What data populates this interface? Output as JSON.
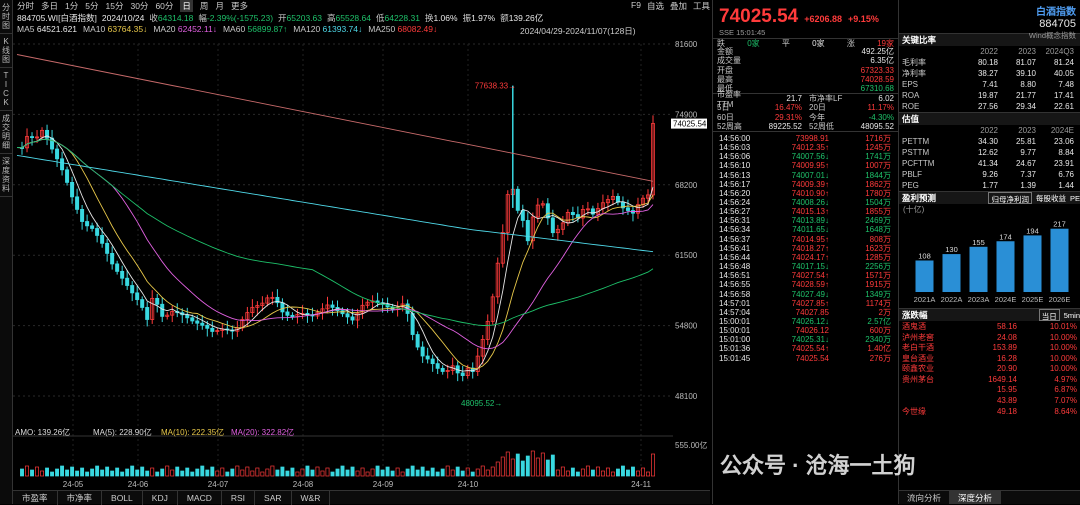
{
  "left_tabs": [
    "分时图",
    "K线图",
    "TICK",
    "成交明细",
    "深度资料"
  ],
  "top_tabs": [
    "分时",
    "多日",
    "1分",
    "5分",
    "15分",
    "30分",
    "60分",
    "日",
    "周",
    "月",
    "更多"
  ],
  "top_right": [
    "F9",
    "自选",
    "叠加",
    "工具"
  ],
  "info": {
    "code": "884705.WI[白酒指数]",
    "date": "2024/10/24",
    "close_l": "收",
    "close": "64314.18",
    "chg_l": "幅",
    "chg": "-2.39%(-1575.23)",
    "open_l": "开",
    "open": "65203.63",
    "high_l": "高",
    "high": "65528.64",
    "low_l": "低",
    "low": "64228.31",
    "turn_l": "换",
    "turn": "1.06%",
    "amp_l": "振",
    "amp": "1.97%",
    "amt_l": "额",
    "amt": "139.26亿"
  },
  "ma": [
    {
      "l": "MA5",
      "v": "64521.621",
      "c": "#e8e8e8"
    },
    {
      "l": "MA10",
      "v": "63764.35↓",
      "c": "#e8c84a"
    },
    {
      "l": "MA20",
      "v": "62452.11↓",
      "c": "#e060e0"
    },
    {
      "l": "MA60",
      "v": "56899.87↑",
      "c": "#1ec16a"
    },
    {
      "l": "MA120",
      "v": "61393.74↓",
      "c": "#4fd8e8"
    },
    {
      "l": "MA250",
      "v": "68082.49↓",
      "c": "#ff3b3b"
    }
  ],
  "range": "2024/04/29-2024/11/07(128日)",
  "yaxis": [
    "81600",
    "74900",
    "68200",
    "61500",
    "54800",
    "48100"
  ],
  "price_tag": "74025.54",
  "hi_label": "77638.33",
  "lo_label": "48095.52",
  "vol_axis": "555.00亿",
  "xaxis": [
    "24-05",
    "24-06",
    "24-07",
    "24-08",
    "24-09",
    "24-10",
    "24-11"
  ],
  "amo": {
    "l": "AMO: 139.26亿",
    "ma5": "MA(5): 228.90亿",
    "ma10": "MA(10): 222.35亿",
    "ma20": "MA(20): 322.82亿"
  },
  "bottom_tabs": [
    "市盈率",
    "市净率",
    "BOLL",
    "KDJ",
    "MACD",
    "RSI",
    "SAR",
    "W&R"
  ],
  "quote": {
    "price": "74025.54",
    "chg": "+6206.88",
    "pct": "+9.15%",
    "sse": "SSE 15:01:45"
  },
  "stats": [
    [
      "跌",
      "0家",
      "平",
      "0家",
      "涨",
      "19家"
    ]
  ],
  "kv": [
    [
      "金额",
      "492.25亿"
    ],
    [
      "成交量",
      "6.35亿"
    ],
    [
      "开盘",
      "67323.33"
    ],
    [
      "最高",
      "74028.59"
    ],
    [
      "最低",
      "67310.68"
    ]
  ],
  "pe": [
    [
      "市盈率TTM",
      "21.7",
      "市净率LF",
      "6.02"
    ],
    [
      "5日",
      "16.47%",
      "20日",
      "11.17%"
    ],
    [
      "60日",
      "29.31%",
      "今年",
      "-4.30%"
    ],
    [
      "52周高",
      "89225.52",
      "52周低",
      "48095.52"
    ]
  ],
  "ticks": [
    [
      "14:56:00",
      "73998.91",
      "1716万"
    ],
    [
      "14:56:03",
      "74012.35↑",
      "1245万"
    ],
    [
      "14:56:06",
      "74007.56↓",
      "1741万"
    ],
    [
      "14:56:10",
      "74009.95↑",
      "1007万"
    ],
    [
      "14:56:13",
      "74007.01↓",
      "1844万"
    ],
    [
      "14:56:17",
      "74009.39↑",
      "1862万"
    ],
    [
      "14:56:20",
      "74010.90↑",
      "1780万"
    ],
    [
      "14:56:24",
      "74008.26↓",
      "1504万"
    ],
    [
      "14:56:27",
      "74015.13↑",
      "1855万"
    ],
    [
      "14:56:31",
      "74013.89↓",
      "2469万"
    ],
    [
      "14:56:34",
      "74011.65↓",
      "1648万"
    ],
    [
      "14:56:37",
      "74014.95↑",
      "808万"
    ],
    [
      "14:56:41",
      "74018.27↑",
      "1623万"
    ],
    [
      "14:56:44",
      "74024.17↑",
      "1285万"
    ],
    [
      "14:56:48",
      "74017.15↓",
      "2256万"
    ],
    [
      "14:56:51",
      "74027.54↑",
      "1571万"
    ],
    [
      "14:56:55",
      "74028.59↑",
      "1915万"
    ],
    [
      "14:56:58",
      "74027.49↓",
      "1349万"
    ],
    [
      "14:57:01",
      "74027.85↑",
      "1174万"
    ],
    [
      "14:57:04",
      "74027.85",
      "2万"
    ],
    [
      "15:00:01",
      "74026.12↓",
      "2.57亿"
    ],
    [
      "15:00:01",
      "74026.12",
      "600万"
    ],
    [
      "15:01:00",
      "74025.31↓",
      "2340万"
    ],
    [
      "15:01:36",
      "74025.54↑",
      "1.40亿"
    ],
    [
      "15:01:45",
      "74025.54",
      "276万"
    ]
  ],
  "name": {
    "t": "白酒指数",
    "code": "884705",
    "sub": "Wind概念指数"
  },
  "ratio_title": "关键比率",
  "ratio_head": [
    "",
    "2022",
    "2023",
    "2024Q3"
  ],
  "ratios": [
    [
      "毛利率",
      "80.18",
      "81.07",
      "81.24"
    ],
    [
      "净利率",
      "38.27",
      "39.10",
      "40.05"
    ],
    [
      "EPS",
      "7.41",
      "8.80",
      "7.48"
    ],
    [
      "ROA",
      "19.87",
      "21.77",
      "17.41"
    ],
    [
      "ROE",
      "27.56",
      "29.34",
      "22.61"
    ]
  ],
  "val_title": "估值",
  "val_head": [
    "",
    "2022",
    "2023",
    "2024E"
  ],
  "vals": [
    [
      "PETTM",
      "34.30",
      "25.81",
      "23.06"
    ],
    [
      "PSTTM",
      "12.62",
      "9.77",
      "8.84"
    ],
    [
      "PCFTTM",
      "41.34",
      "24.67",
      "23.91"
    ],
    [
      "PBLF",
      "9.26",
      "7.37",
      "6.76"
    ],
    [
      "PEG",
      "1.77",
      "1.39",
      "1.44"
    ]
  ],
  "profit_title": "盈利预测",
  "profit_tabs": [
    "归母净利润",
    "每股收益",
    "PE"
  ],
  "profit_unit": "(十亿)",
  "profit": {
    "cats": [
      "2021A",
      "2022A",
      "2023A",
      "2024E",
      "2025E",
      "2026E"
    ],
    "values": [
      108,
      130,
      155,
      174,
      194,
      217
    ]
  },
  "up_title": "涨跌幅",
  "up_tabs": [
    "当日",
    "5min"
  ],
  "ups": [
    [
      "酒鬼酒",
      "58.16",
      "10.01%"
    ],
    [
      "泸州老窖",
      "24.08",
      "10.00%"
    ],
    [
      "老白干酒",
      "153.89",
      "10.00%"
    ],
    [
      "皇台酒业",
      "16.28",
      "10.00%"
    ],
    [
      "颐鑫农业",
      "20.90",
      "10.00%"
    ],
    [
      "贵州茅台",
      "1649.14",
      "4.97%"
    ],
    [
      "",
      "15.95",
      "6.87%"
    ],
    [
      "",
      "43.89",
      "7.07%"
    ],
    [
      "今世缘",
      "49.18",
      "8.64%"
    ]
  ],
  "foot_tabs": [
    "流向分析",
    "深度分析"
  ],
  "watermark": "公众号 · 沧海一土狗"
}
